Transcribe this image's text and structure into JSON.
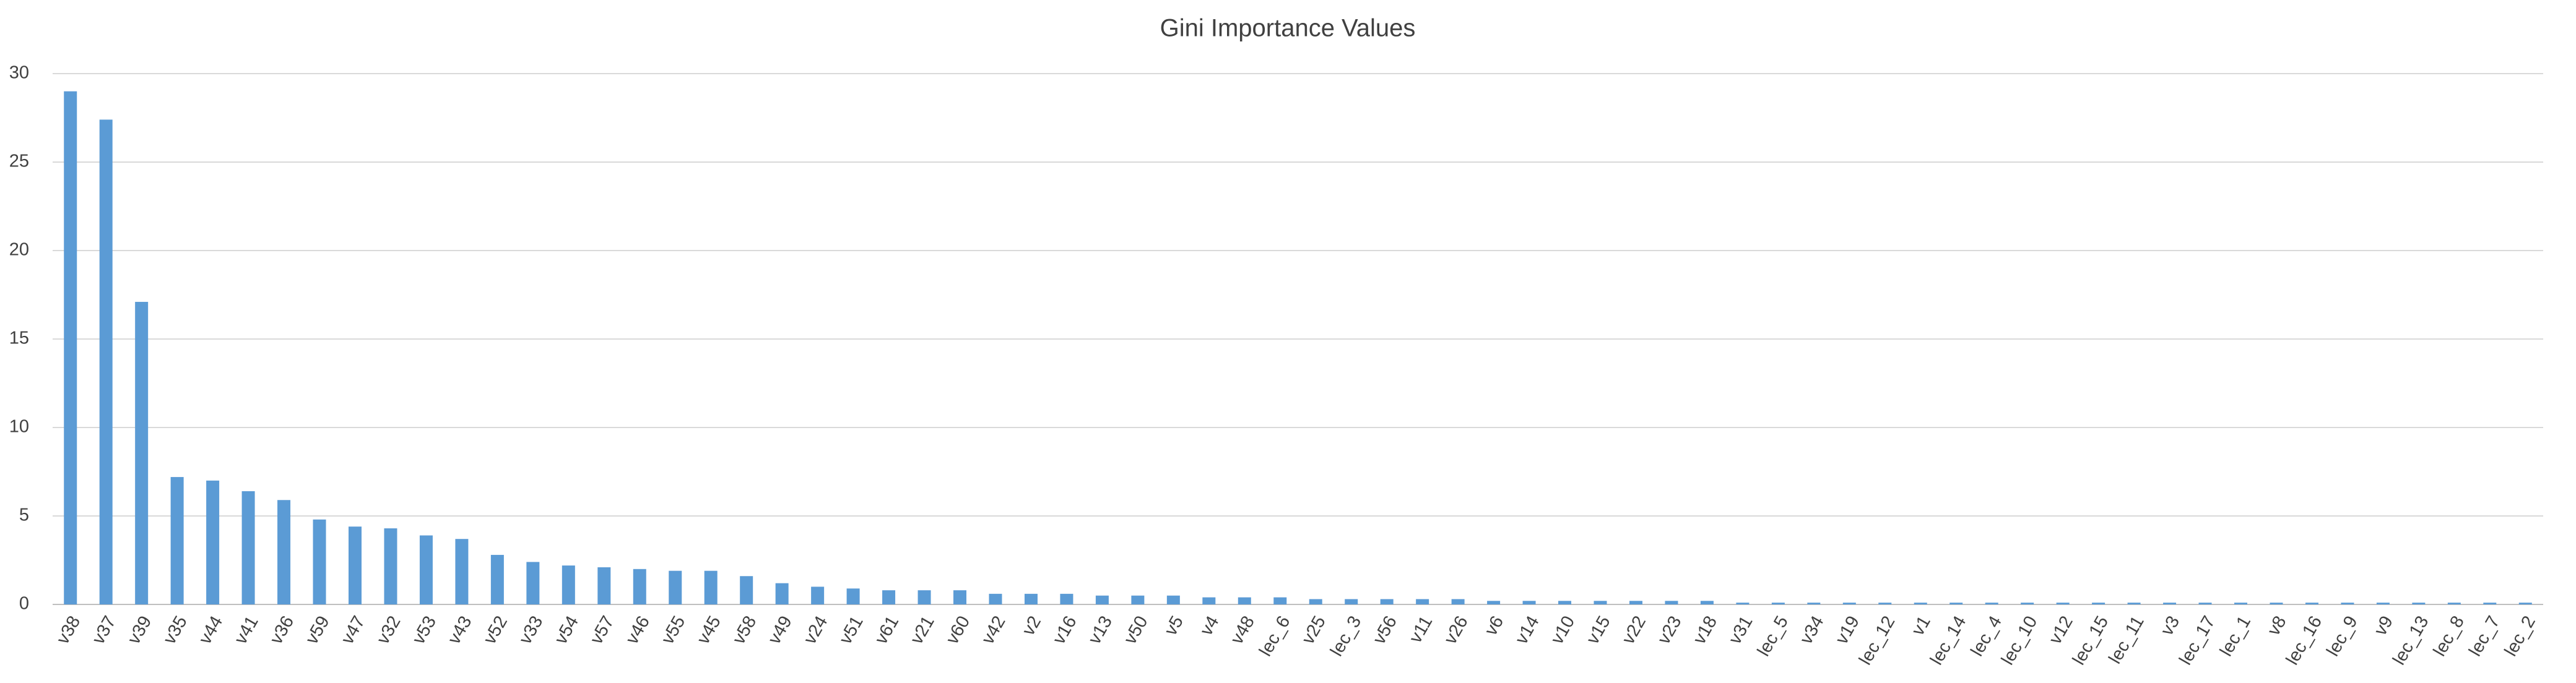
{
  "chart_data": {
    "type": "bar",
    "title": "Gini Importance Values",
    "categories": [
      "v38",
      "v37",
      "v39",
      "v35",
      "v44",
      "v41",
      "v36",
      "v59",
      "v47",
      "v32",
      "v53",
      "v43",
      "v52",
      "v33",
      "v54",
      "v57",
      "v46",
      "v55",
      "v45",
      "v58",
      "v49",
      "v24",
      "v51",
      "v61",
      "v21",
      "v60",
      "v42",
      "v2",
      "v16",
      "v13",
      "v50",
      "v5",
      "v4",
      "v48",
      "lec_6",
      "v25",
      "lec_3",
      "v56",
      "v11",
      "v26",
      "v6",
      "v14",
      "v10",
      "v15",
      "v22",
      "v23",
      "v18",
      "v31",
      "lec_5",
      "v34",
      "v19",
      "lec_12",
      "v1",
      "lec_14",
      "lec_4",
      "lec_10",
      "v12",
      "lec_15",
      "lec_11",
      "v3",
      "lec_17",
      "lec_1",
      "v8",
      "lec_16",
      "lec_9",
      "v9",
      "lec_13",
      "lec_8",
      "lec_7",
      "lec_2"
    ],
    "values": [
      29,
      27.4,
      17.1,
      7.2,
      7.0,
      6.4,
      5.9,
      4.8,
      4.4,
      4.3,
      3.9,
      3.7,
      2.8,
      2.4,
      2.2,
      2.1,
      2.0,
      1.9,
      1.9,
      1.6,
      1.2,
      1.0,
      0.9,
      0.8,
      0.8,
      0.8,
      0.6,
      0.6,
      0.6,
      0.5,
      0.5,
      0.5,
      0.4,
      0.4,
      0.4,
      0.3,
      0.3,
      0.3,
      0.3,
      0.3,
      0.2,
      0.2,
      0.2,
      0.2,
      0.2,
      0.2,
      0.2,
      0.1,
      0.1,
      0.1,
      0.1,
      0.1,
      0.1,
      0.1,
      0.1,
      0.1,
      0.1,
      0.1,
      0.1,
      0.1,
      0.1,
      0.1,
      0.1,
      0.1,
      0.1,
      0.1,
      0.1,
      0.1,
      0.1,
      0.1
    ],
    "color": "#5b9bd5",
    "ylim": [
      0,
      30
    ],
    "yticks": [
      0,
      5,
      10,
      15,
      20,
      25,
      30
    ],
    "grid": true
  }
}
